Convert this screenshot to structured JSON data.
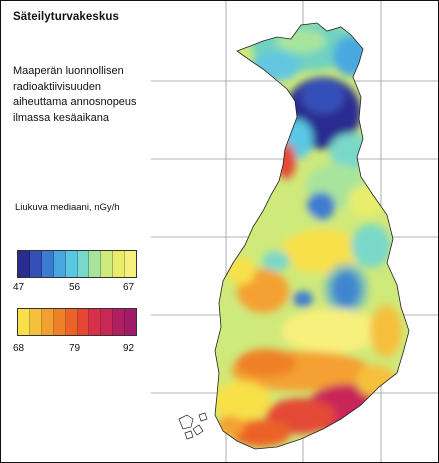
{
  "header": {
    "org_name": "Säteilyturvakeskus"
  },
  "map": {
    "description_lines": [
      "Maaperän luonnollisen",
      "radioaktiivisuuden",
      "aiheuttama annosnopeus",
      "ilmassa kesäaikana"
    ]
  },
  "legend": {
    "title": "Liukuva mediaani, nGy/h",
    "scale_low": {
      "colors": [
        "#2a2c90",
        "#3450b8",
        "#3c7cd0",
        "#4aa8e0",
        "#5ac8e4",
        "#7ad8c8",
        "#a8e49c",
        "#cdeb7c",
        "#e8ee6c",
        "#f8f07c"
      ],
      "labels": [
        "47",
        "56",
        "67"
      ]
    },
    "scale_high": {
      "colors": [
        "#f8e04a",
        "#f6c03c",
        "#f4a030",
        "#f08028",
        "#ec6228",
        "#e44834",
        "#d83048",
        "#c82858",
        "#b02060",
        "#a01c68"
      ],
      "labels": [
        "68",
        "79",
        "92"
      ]
    }
  }
}
